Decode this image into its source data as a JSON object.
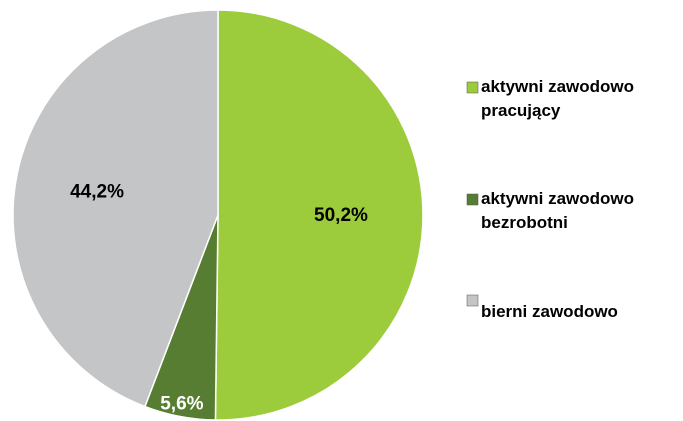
{
  "chart_data": {
    "type": "pie",
    "categories": [
      "aktywni zawodowo pracujący",
      "aktywni zawodowo bezrobotni",
      "bierni zawodowo"
    ],
    "values": [
      50.2,
      5.6,
      44.2
    ],
    "value_labels": [
      "50,2%",
      "5,6%",
      "44,2%"
    ],
    "colors": [
      "#9ccb3b",
      "#577d33",
      "#c4c5c7"
    ],
    "label_colors": [
      "#000000",
      "#ffffff",
      "#000000"
    ],
    "legend": "right"
  }
}
